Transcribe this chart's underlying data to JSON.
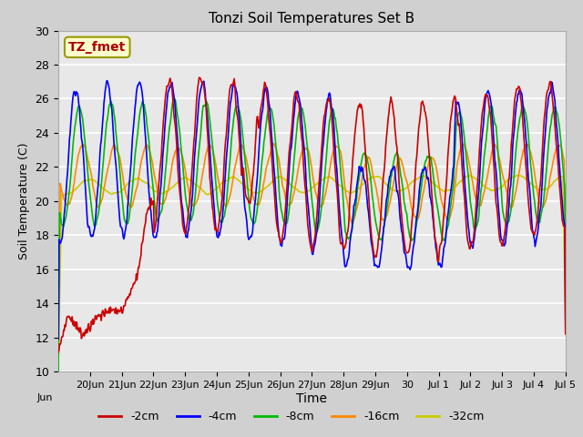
{
  "title": "Tonzi Soil Temperatures Set B",
  "xlabel": "Time",
  "ylabel": "Soil Temperature (C)",
  "ylim": [
    10,
    30
  ],
  "yticks": [
    10,
    12,
    14,
    16,
    18,
    20,
    22,
    24,
    26,
    28,
    30
  ],
  "fig_facecolor": "#d0d0d0",
  "ax_facecolor": "#e8e8e8",
  "series": {
    "-2cm": {
      "color": "#cc0000",
      "lw": 1.2
    },
    "-4cm": {
      "color": "#0000ff",
      "lw": 1.2
    },
    "-8cm": {
      "color": "#00bb00",
      "lw": 1.2
    },
    "-16cm": {
      "color": "#ff8800",
      "lw": 1.2
    },
    "-32cm": {
      "color": "#cccc00",
      "lw": 1.2
    }
  },
  "legend_items": [
    {
      "label": "-2cm",
      "color": "#cc0000"
    },
    {
      "label": "-4cm",
      "color": "#0000ff"
    },
    {
      "label": "-8cm",
      "color": "#00bb00"
    },
    {
      "label": "-16cm",
      "color": "#ff8800"
    },
    {
      "label": "-32cm",
      "color": "#cccc00"
    }
  ],
  "annotation_box": {
    "text": "TZ_fmet",
    "fontsize": 10,
    "text_color": "#aa0000",
    "box_facecolor": "#ffffcc",
    "box_edgecolor": "#999900"
  }
}
